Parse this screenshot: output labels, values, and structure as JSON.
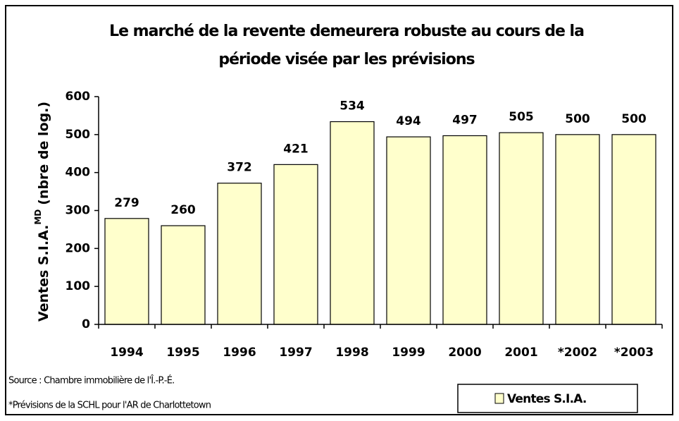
{
  "chart_data": {
    "type": "bar",
    "title": [
      "Le marché de la revente demeurera robuste au cours de la",
      "période visée par les prévisions"
    ],
    "ylabel": {
      "text": "Ventes S.I.A.",
      "superscript": "MD",
      "suffix": "(nbre de log.)"
    },
    "categories": [
      "1994",
      "1995",
      "1996",
      "1997",
      "1998",
      "1999",
      "2000",
      "2001",
      "*2002",
      "*2003"
    ],
    "series": [
      {
        "name": "Ventes S.I.A.",
        "color": "#ffffcc",
        "values": [
          279,
          260,
          372,
          421,
          534,
          494,
          497,
          505,
          500,
          500
        ]
      }
    ],
    "ylim": [
      0,
      600
    ],
    "yticks": [
      0,
      100,
      200,
      300,
      400,
      500,
      600
    ],
    "grid": false,
    "legend": "bottom-right",
    "notes": [
      "Source : Chambre immobilière de l'Î.-P.-É.",
      "*Prévisions de la SCHL pour l'AR de Charlottetown"
    ]
  }
}
